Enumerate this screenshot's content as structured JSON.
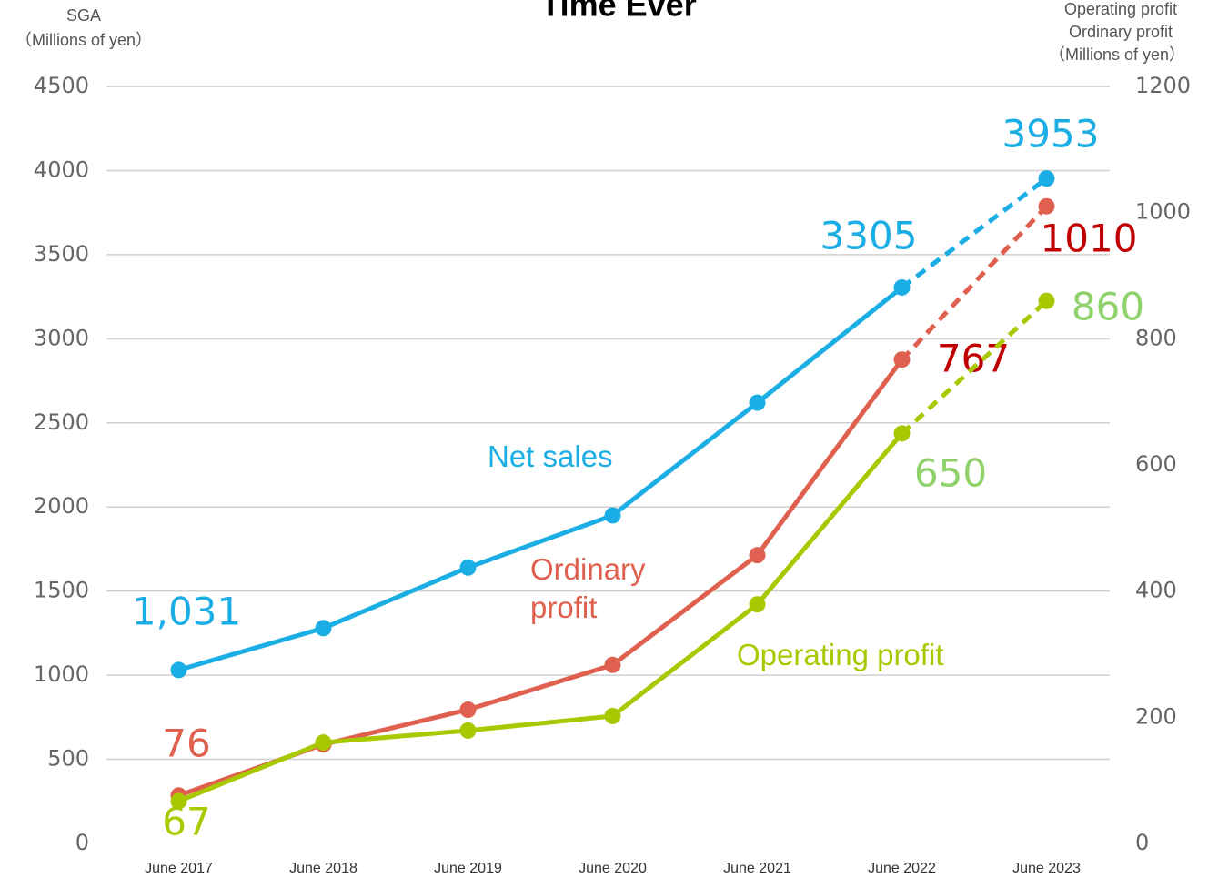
{
  "chart_data": {
    "type": "line",
    "title": "Time Ever",
    "ylabel": [
      "SGA",
      "（Millions of yen）"
    ],
    "y2label": [
      "Operating profit",
      "Ordinary profit",
      "（Millions of yen）"
    ],
    "categories": [
      "June 2017",
      "June 2018",
      "June 2019",
      "June 2020",
      "June 2021",
      "June 2022",
      "June 2023"
    ],
    "ylim": [
      0,
      4500
    ],
    "yticks": [
      0,
      500,
      1000,
      1500,
      2000,
      2500,
      3000,
      3500,
      4000,
      4500
    ],
    "y2lim": [
      0,
      1200
    ],
    "y2ticks": [
      0,
      200,
      400,
      600,
      800,
      1000,
      1200
    ],
    "grid": true,
    "dashed_last_segment": true,
    "series": [
      {
        "name": "Net sales",
        "color": "#1aaee5",
        "values": [
          1031,
          1280,
          1640,
          1950,
          2620,
          3305,
          3953
        ],
        "value_labels": [
          "1,031",
          null,
          null,
          null,
          null,
          "3305",
          "3953"
        ]
      },
      {
        "name": "Ordinary profit",
        "color": "#e0604f",
        "axis": "y2",
        "values": [
          76,
          157,
          212,
          283,
          457,
          767,
          1010
        ],
        "value_labels": [
          "76",
          null,
          null,
          null,
          null,
          "767",
          "1010"
        ]
      },
      {
        "name": "Operating profit",
        "color": "#a8c800",
        "axis": "y2",
        "values": [
          67,
          160,
          179,
          202,
          379,
          650,
          860
        ],
        "value_labels": [
          "67",
          null,
          null,
          null,
          null,
          "650",
          "860"
        ]
      }
    ]
  }
}
